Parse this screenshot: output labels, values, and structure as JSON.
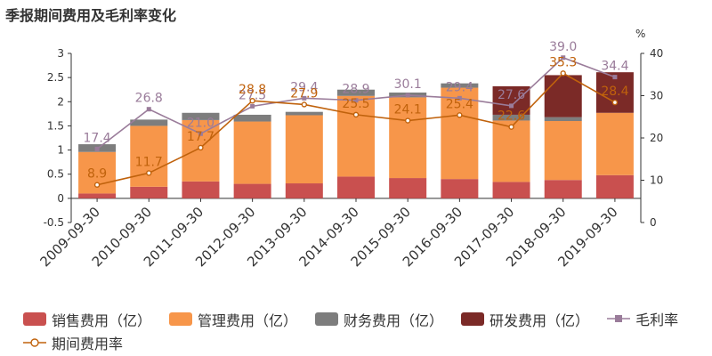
{
  "title": "季报期间费用及毛利率变化",
  "chart_data": {
    "type": "bar",
    "stacked": true,
    "categories": [
      "2009-09-30",
      "2010-09-30",
      "2011-09-30",
      "2012-09-30",
      "2013-09-30",
      "2014-09-30",
      "2015-09-30",
      "2016-09-30",
      "2017-09-30",
      "2018-09-30",
      "2019-09-30"
    ],
    "ylim_left": [
      -0.5,
      3
    ],
    "yticks_left": [
      "-0.5",
      "0",
      "0.5",
      "1",
      "1.5",
      "2",
      "2.5",
      "3"
    ],
    "ylim_right": [
      0,
      40
    ],
    "yticks_right": [
      "0",
      "10",
      "20",
      "30",
      "40"
    ],
    "right_unit": "%",
    "series": [
      {
        "name": "销售费用（亿）",
        "color": "#c9504f",
        "axis": "left",
        "values": [
          0.1,
          0.24,
          0.35,
          0.3,
          0.31,
          0.45,
          0.42,
          0.4,
          0.34,
          0.38,
          0.48
        ]
      },
      {
        "name": "管理费用（亿）",
        "color": "#f7964a",
        "axis": "left",
        "values": [
          0.86,
          1.26,
          1.27,
          1.29,
          1.41,
          1.67,
          1.67,
          1.89,
          1.27,
          1.22,
          1.29
        ]
      },
      {
        "name": "财务费用（亿）",
        "color": "#7d7d7d",
        "axis": "left",
        "values": [
          0.16,
          0.13,
          0.15,
          0.14,
          0.07,
          0.13,
          0.1,
          0.09,
          0.12,
          0.08,
          0.0
        ]
      },
      {
        "name": "研发费用（亿）",
        "color": "#7b2a27",
        "axis": "left",
        "values": [
          0,
          0,
          0,
          0,
          0,
          0,
          0,
          0,
          0.59,
          0.87,
          0.84
        ]
      }
    ],
    "lines": [
      {
        "name": "毛利率",
        "color": "#9a7c9a",
        "marker": "square",
        "axis": "right",
        "values": [
          17.4,
          26.8,
          21.0,
          27.5,
          29.4,
          28.9,
          30.1,
          29.4,
          27.6,
          39.0,
          34.4
        ],
        "labels": [
          "17.4",
          "26.8",
          "21.0",
          "27.5",
          "29.4",
          "28.9",
          "30.1",
          "29.4",
          "27.6",
          "39.0",
          "34.4"
        ]
      },
      {
        "name": "期间费用率",
        "color": "#c0620c",
        "marker": "circle",
        "axis": "right",
        "values": [
          8.9,
          11.7,
          17.7,
          28.8,
          27.9,
          25.5,
          24.1,
          25.4,
          22.6,
          35.3,
          28.4
        ],
        "labels": [
          "8.9",
          "11.7",
          "17.7",
          "28.8",
          "27.9",
          "25.5",
          "24.1",
          "25.4",
          "22.6",
          "35.3",
          "28.4"
        ]
      }
    ],
    "grid": false,
    "legend_position": "bottom"
  }
}
